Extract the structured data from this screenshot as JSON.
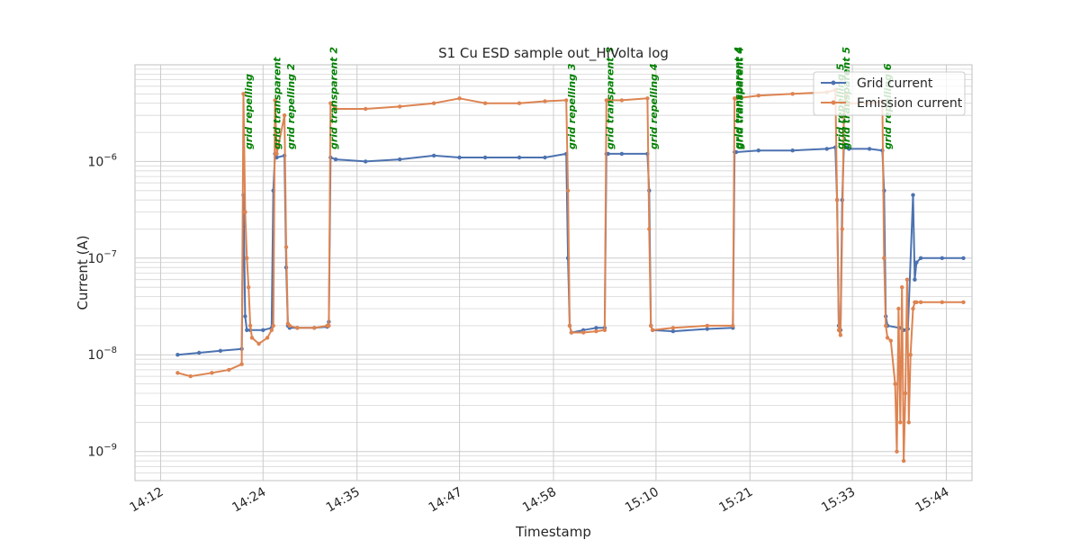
{
  "chart_data": {
    "type": "line",
    "title": "S1 Cu ESD sample out_HiVolta log",
    "xlabel": "Timestamp",
    "ylabel": "Current (A)",
    "yscale": "log",
    "ylim": [
      5e-10,
      1e-05
    ],
    "xlim": [
      "14:09",
      "15:47"
    ],
    "grid": true,
    "legend_position": "top-right",
    "x_ticks": [
      "14:12",
      "14:24",
      "14:35",
      "14:47",
      "14:58",
      "15:10",
      "15:21",
      "15:33",
      "15:44"
    ],
    "y_ticks": [
      {
        "value": 1e-09,
        "base": "10",
        "exp": "−9"
      },
      {
        "value": 1e-08,
        "base": "10",
        "exp": "−8"
      },
      {
        "value": 1e-07,
        "base": "10",
        "exp": "−7"
      },
      {
        "value": 1e-06,
        "base": "10",
        "exp": "−6"
      }
    ],
    "series": [
      {
        "name": "Grid current",
        "color": "#4c72b0",
        "x": [
          "14:14:00",
          "14:16:30",
          "14:19:00",
          "14:21:30",
          "14:21:42",
          "14:21:54",
          "14:22:06",
          "14:22:30",
          "14:24:00",
          "14:25:00",
          "14:25:12",
          "14:25:24",
          "14:25:36",
          "14:26:30",
          "14:26:42",
          "14:26:54",
          "14:27:06",
          "14:28:00",
          "14:30:00",
          "14:31:30",
          "14:31:42",
          "14:31:54",
          "14:32:30",
          "14:36:00",
          "14:40:00",
          "14:44:00",
          "14:47:00",
          "14:50:00",
          "14:54:00",
          "14:57:00",
          "14:59:30",
          "14:59:42",
          "14:59:54",
          "15:00:06",
          "15:01:30",
          "15:03:00",
          "15:04:00",
          "15:04:12",
          "15:04:24",
          "15:06:00",
          "15:09:00",
          "15:09:12",
          "15:09:24",
          "15:09:36",
          "15:12:00",
          "15:16:00",
          "15:19:00",
          "15:19:12",
          "15:19:24",
          "15:22:00",
          "15:26:00",
          "15:30:00",
          "15:31:00",
          "15:31:12",
          "15:31:24",
          "15:31:36",
          "15:31:48",
          "15:32:00",
          "15:32:12",
          "15:32:24",
          "15:32:36",
          "15:35:00",
          "15:36:30",
          "15:36:42",
          "15:36:54",
          "15:37:06",
          "15:38:30",
          "15:39:00",
          "15:39:30",
          "15:40:06",
          "15:40:18",
          "15:40:30",
          "15:41:00",
          "15:43:30",
          "15:46:00"
        ],
        "values": [
          1e-08,
          1.05e-08,
          1.1e-08,
          1.15e-08,
          4.5e-07,
          2.5e-08,
          1.8e-08,
          1.8e-08,
          1.8e-08,
          1.9e-08,
          5e-07,
          1.2e-06,
          1.1e-06,
          1.15e-06,
          8e-08,
          2e-08,
          1.9e-08,
          1.9e-08,
          1.9e-08,
          1.95e-08,
          2.2e-08,
          1.1e-06,
          1.05e-06,
          1e-06,
          1.05e-06,
          1.15e-06,
          1.1e-06,
          1.1e-06,
          1.1e-06,
          1.1e-06,
          1.2e-06,
          1e-07,
          2e-08,
          1.7e-08,
          1.8e-08,
          1.9e-08,
          1.9e-08,
          1.2e-06,
          1.2e-06,
          1.2e-06,
          1.2e-06,
          5e-07,
          2e-08,
          1.8e-08,
          1.75e-08,
          1.85e-08,
          1.9e-08,
          1.25e-06,
          1.25e-06,
          1.3e-06,
          1.3e-06,
          1.35e-06,
          1.4e-06,
          4e-07,
          2e-08,
          1.8e-08,
          4e-07,
          1.5e-06,
          1.4e-06,
          1.4e-06,
          1.35e-06,
          1.35e-06,
          1.3e-06,
          5e-07,
          2.5e-08,
          2e-08,
          1.9e-08,
          1.8e-08,
          1.85e-08,
          4.5e-07,
          6e-08,
          9e-08,
          1e-07,
          1e-07,
          1e-07
        ]
      },
      {
        "name": "Emission current",
        "color": "#dd8452",
        "x": [
          "14:14:00",
          "14:15:30",
          "14:18:00",
          "14:20:00",
          "14:21:30",
          "14:21:42",
          "14:21:54",
          "14:22:06",
          "14:22:18",
          "14:22:30",
          "14:22:42",
          "14:23:30",
          "14:24:30",
          "14:25:00",
          "14:25:12",
          "14:25:24",
          "14:25:36",
          "14:26:30",
          "14:26:42",
          "14:26:54",
          "14:27:06",
          "14:28:00",
          "14:30:00",
          "14:31:30",
          "14:31:42",
          "14:31:54",
          "14:32:30",
          "14:36:00",
          "14:40:00",
          "14:44:00",
          "14:47:00",
          "14:50:00",
          "14:54:00",
          "14:57:00",
          "14:59:30",
          "14:59:42",
          "14:59:54",
          "15:00:06",
          "15:01:30",
          "15:03:00",
          "15:04:00",
          "15:04:12",
          "15:04:24",
          "15:06:00",
          "15:09:00",
          "15:09:12",
          "15:09:24",
          "15:09:36",
          "15:12:00",
          "15:16:00",
          "15:19:00",
          "15:19:12",
          "15:19:24",
          "15:22:00",
          "15:26:00",
          "15:30:00",
          "15:31:00",
          "15:31:12",
          "15:31:24",
          "15:31:36",
          "15:31:48",
          "15:32:00",
          "15:32:12",
          "15:32:24",
          "15:32:36",
          "15:35:00",
          "15:36:30",
          "15:36:42",
          "15:36:54",
          "15:37:06",
          "15:37:30",
          "15:38:00",
          "15:38:12",
          "15:38:24",
          "15:38:36",
          "15:38:48",
          "15:39:00",
          "15:39:12",
          "15:39:24",
          "15:39:36",
          "15:39:48",
          "15:40:06",
          "15:40:18",
          "15:40:30",
          "15:41:00",
          "15:43:30",
          "15:46:00"
        ],
        "values": [
          6.5e-09,
          6e-09,
          6.5e-09,
          7e-09,
          8e-09,
          5e-06,
          3e-07,
          1e-07,
          5e-08,
          2e-08,
          1.5e-08,
          1.3e-08,
          1.5e-08,
          1.8e-08,
          2e-08,
          4.3e-06,
          1.2e-06,
          3e-06,
          1.3e-07,
          2.1e-08,
          2e-08,
          1.9e-08,
          1.9e-08,
          2e-08,
          2e-08,
          4e-06,
          3.5e-06,
          3.5e-06,
          3.7e-06,
          4e-06,
          4.5e-06,
          4e-06,
          4e-06,
          4.2e-06,
          4.3e-06,
          5e-07,
          2e-08,
          1.7e-08,
          1.7e-08,
          1.75e-08,
          1.8e-08,
          4.3e-06,
          4.3e-06,
          4.3e-06,
          4.5e-06,
          2e-07,
          2e-08,
          1.8e-08,
          1.9e-08,
          2e-08,
          2e-08,
          4.5e-06,
          4.5e-06,
          4.8e-06,
          5e-06,
          5.2e-06,
          5.5e-06,
          4e-07,
          1.8e-08,
          1.6e-08,
          2e-07,
          3e-06,
          5e-06,
          4e-06,
          4e-06,
          4e-06,
          4.2e-06,
          1e-07,
          2e-08,
          1.5e-08,
          1.4e-08,
          5e-09,
          1e-09,
          3e-08,
          2e-09,
          5e-08,
          8e-10,
          4e-09,
          6e-08,
          2e-09,
          1e-08,
          3e-08,
          3.5e-08,
          3.5e-08,
          3.5e-08,
          3.5e-08,
          3.5e-08
        ]
      }
    ],
    "annotations": [
      {
        "x": "14:21:50",
        "text": "grid repelling"
      },
      {
        "x": "14:25:10",
        "text": "grid transparent"
      },
      {
        "x": "14:26:50",
        "text": "grid repelling 2"
      },
      {
        "x": "14:31:50",
        "text": "grid transparent 2"
      },
      {
        "x": "14:59:40",
        "text": "grid repelling 3"
      },
      {
        "x": "15:04:10",
        "text": "grid transparent 3"
      },
      {
        "x": "15:09:15",
        "text": "grid repelling 4"
      },
      {
        "x": "15:19:10",
        "text": "grid transparent 4"
      },
      {
        "x": "15:19:20",
        "text": "grid transparent 4"
      },
      {
        "x": "15:31:10",
        "text": "grid repelling 5"
      },
      {
        "x": "15:31:50",
        "text": "grid transparent 5"
      },
      {
        "x": "15:36:40",
        "text": "grid repelling 6"
      }
    ]
  }
}
